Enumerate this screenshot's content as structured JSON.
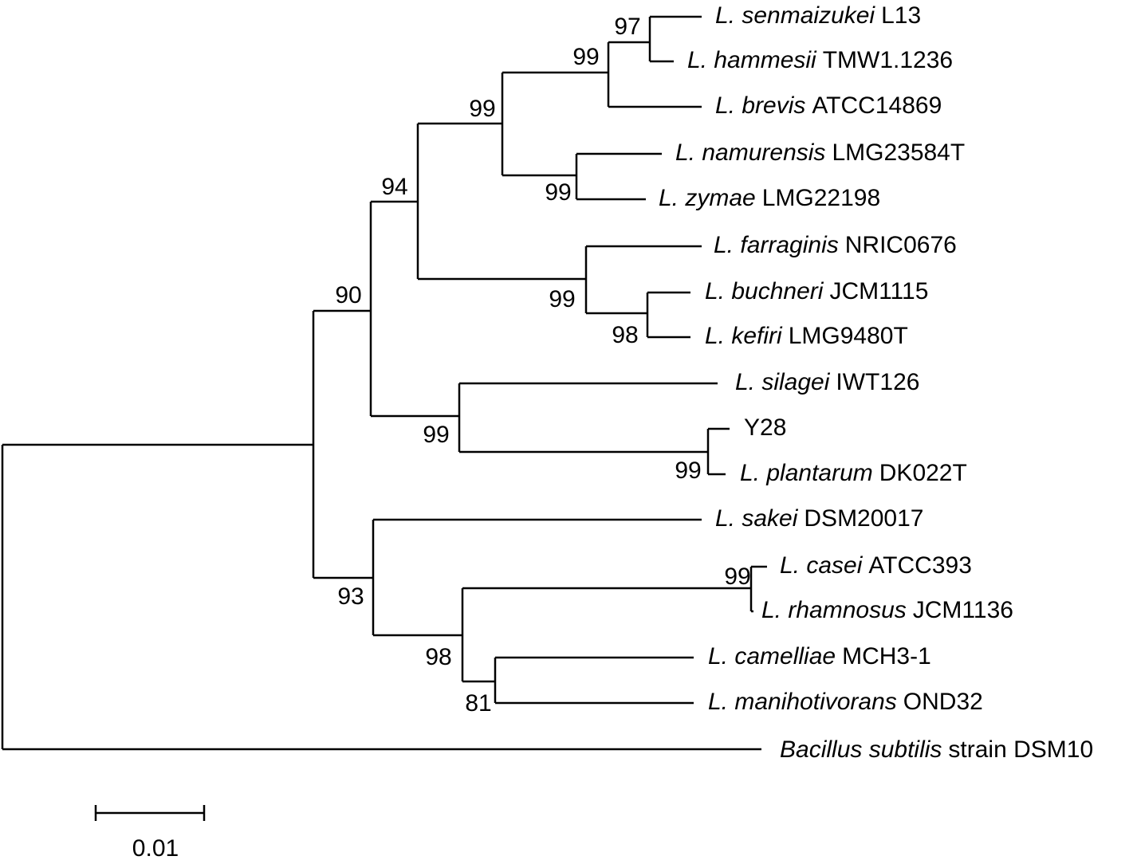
{
  "leaves": [
    {
      "italic": "L. senmaizukei",
      "rest": "L13"
    },
    {
      "italic": "L. hammesii",
      "rest": "TMW1.1236"
    },
    {
      "italic": "L. brevis",
      "rest": "ATCC14869"
    },
    {
      "italic": "L. namurensis",
      "rest": "LMG23584T"
    },
    {
      "italic": "L. zymae",
      "rest": "LMG22198"
    },
    {
      "italic": "L. farraginis",
      "rest": "NRIC0676"
    },
    {
      "italic": "L. buchneri",
      "rest": "JCM1115"
    },
    {
      "italic": "L. kefiri",
      "rest": "LMG9480T"
    },
    {
      "italic": "L. silagei",
      "rest": "IWT126"
    },
    {
      "rest": "Y28"
    },
    {
      "italic": "L. plantarum",
      "rest": "DK022T"
    },
    {
      "italic": "L. sakei",
      "rest": "DSM20017"
    },
    {
      "italic": "L. casei",
      "rest": "ATCC393"
    },
    {
      "italic": "L. rhamnosus",
      "rest": "JCM1136"
    },
    {
      "italic": "L. camelliae",
      "rest": "MCH3-1"
    },
    {
      "italic": "L. manihotivorans",
      "rest": "OND32"
    },
    {
      "italic": "Bacillus subtilis",
      "rest": "strain DSM10"
    }
  ],
  "bootstrap": [
    97,
    99,
    99,
    99,
    94,
    99,
    98,
    90,
    99,
    99,
    93,
    98,
    99,
    81
  ],
  "scale_bar": {
    "label": "0.01"
  }
}
